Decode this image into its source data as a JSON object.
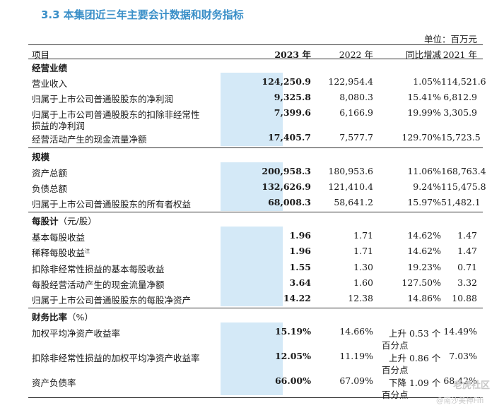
{
  "title": "3.3 本集团近三年主要会计数据和财务指标",
  "unit": "单位：百万元",
  "header": {
    "item": "项目",
    "y2023": "2023 年",
    "y2022": "2022 年",
    "yoy": "同比增减",
    "y2021": "2021 年"
  },
  "sections": {
    "operating": {
      "title": "经营业绩"
    },
    "scale": {
      "title": "规模"
    },
    "per_share": {
      "title": "每股计",
      "unit": "（元/股）"
    },
    "ratios": {
      "title": "财务比率",
      "unit": "（%）"
    }
  },
  "rows": {
    "r1": {
      "label": "营业收入",
      "v2023": "124,250.9",
      "v2022": "122,954.4",
      "yoy": "1.05%",
      "v2021": "114,521.6"
    },
    "r2": {
      "label": "归属于上市公司普通股股东的净利润",
      "v2023": "9,325.8",
      "v2022": "8,080.3",
      "yoy": "15.41%",
      "v2021": "6,812.9"
    },
    "r3": {
      "label1": "归属于上市公司普通股股东的扣除非经常性",
      "label2": "损益的净利润",
      "v2023": "7,399.6",
      "v2022": "6,166.9",
      "yoy": "19.99%",
      "v2021": "3,305.9"
    },
    "r4": {
      "label": "经营活动产生的现金流量净额",
      "v2023": "17,405.7",
      "v2022": "7,577.7",
      "yoy": "129.70%",
      "v2021": "15,723.5"
    },
    "r5": {
      "label": "资产总额",
      "v2023": "200,958.3",
      "v2022": "180,953.6",
      "yoy": "11.06%",
      "v2021": "168,763.4"
    },
    "r6": {
      "label": "负债总额",
      "v2023": "132,626.9",
      "v2022": "121,410.4",
      "yoy": "9.24%",
      "v2021": "115,475.8"
    },
    "r7": {
      "label": "归属于上市公司普通股股东的所有者权益",
      "v2023": "68,008.3",
      "v2022": "58,641.2",
      "yoy": "15.97%",
      "v2021": "51,482.1"
    },
    "r8": {
      "label": "基本每股收益",
      "v2023": "1.96",
      "v2022": "1.71",
      "yoy": "14.62%",
      "v2021": "1.47"
    },
    "r9": {
      "label": "稀释每股收益",
      "note": "注",
      "v2023": "1.96",
      "v2022": "1.71",
      "yoy": "14.62%",
      "v2021": "1.47"
    },
    "r10": {
      "label": "扣除非经常性损益的基本每股收益",
      "v2023": "1.55",
      "v2022": "1.30",
      "yoy": "19.23%",
      "v2021": "0.71"
    },
    "r11": {
      "label": "每股经营活动产生的现金流量净额",
      "v2023": "3.64",
      "v2022": "1.60",
      "yoy": "127.50%",
      "v2021": "3.32"
    },
    "r12": {
      "label": "归属于上市公司普通股股东的每股净资产",
      "v2023": "14.22",
      "v2022": "12.38",
      "yoy": "14.86%",
      "v2021": "10.88"
    },
    "r13": {
      "label": "加权平均净资产收益率",
      "v2023": "15.19%",
      "v2022": "14.66%",
      "yoy1": "上升 0.53 个",
      "yoy2": "百分点",
      "v2021": "14.49%"
    },
    "r14": {
      "label": "扣除非经常性损益的加权平均净资产收益率",
      "v2023": "12.05%",
      "v2022": "11.19%",
      "yoy1": "上升 0.86 个",
      "yoy2": "百分点",
      "v2021": "7.03%"
    },
    "r15": {
      "label": "资产负债率",
      "v2023": "66.00%",
      "v2022": "67.09%",
      "yoy1": "下降 1.09 个",
      "yoy2": "百分点",
      "v2021": "68.42%"
    }
  },
  "watermark": {
    "line1": "老虎社区",
    "line2": "@南沙美神Fifi"
  }
}
